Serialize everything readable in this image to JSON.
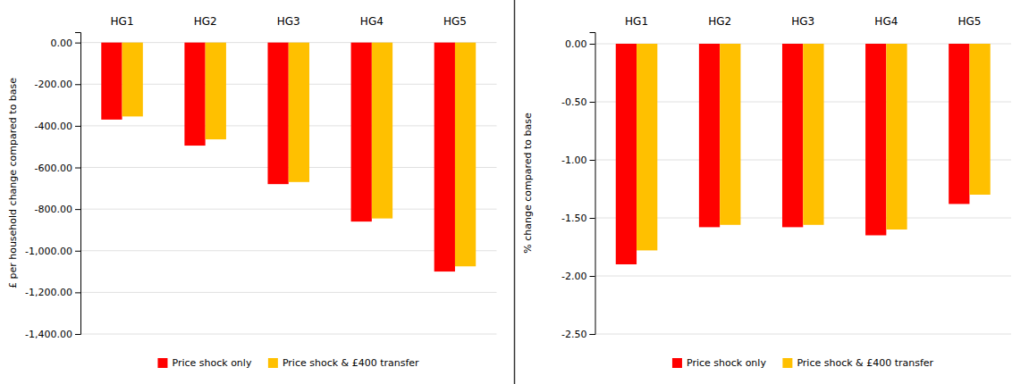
{
  "chart_data": [
    {
      "type": "bar",
      "categories": [
        "HG1",
        "HG2",
        "HG3",
        "HG4",
        "HG5"
      ],
      "series": [
        {
          "name": "Price shock only",
          "color": "#FF0000",
          "values": [
            -370,
            -495,
            -680,
            -860,
            -1100
          ]
        },
        {
          "name": "Price shock & £400 transfer",
          "color": "#FFC000",
          "values": [
            -355,
            -465,
            -670,
            -845,
            -1075
          ]
        }
      ],
      "ylabel": "£ per household change compared to base",
      "ylim": [
        -1400,
        50
      ],
      "yticks": [
        {
          "value": 0,
          "label": "0.00"
        },
        {
          "value": -200,
          "label": "-200.00"
        },
        {
          "value": -400,
          "label": "-400.00"
        },
        {
          "value": -600,
          "label": "-600.00"
        },
        {
          "value": -800,
          "label": "-800.00"
        },
        {
          "value": -1000,
          "label": "-1,000.00"
        },
        {
          "value": -1200,
          "label": "-1,200.00"
        },
        {
          "value": -1400,
          "label": "-1,400.00"
        }
      ],
      "grid": true,
      "legend": "bottom"
    },
    {
      "type": "bar",
      "categories": [
        "HG1",
        "HG2",
        "HG3",
        "HG4",
        "HG5"
      ],
      "series": [
        {
          "name": "Price shock only",
          "color": "#FF0000",
          "values": [
            -1.9,
            -1.58,
            -1.58,
            -1.65,
            -1.38
          ]
        },
        {
          "name": "Price shock & £400 transfer",
          "color": "#FFC000",
          "values": [
            -1.78,
            -1.56,
            -1.56,
            -1.6,
            -1.3
          ]
        }
      ],
      "ylabel": "% change compared to base",
      "ylim": [
        -2.5,
        0.1
      ],
      "yticks": [
        {
          "value": 0.0,
          "label": "0.00"
        },
        {
          "value": -0.5,
          "label": "-0.50"
        },
        {
          "value": -1.0,
          "label": "-1.00"
        },
        {
          "value": -1.5,
          "label": "-1.50"
        },
        {
          "value": -2.0,
          "label": "-2.00"
        },
        {
          "value": -2.5,
          "label": "-2.50"
        }
      ],
      "grid": true,
      "legend": "bottom"
    }
  ]
}
